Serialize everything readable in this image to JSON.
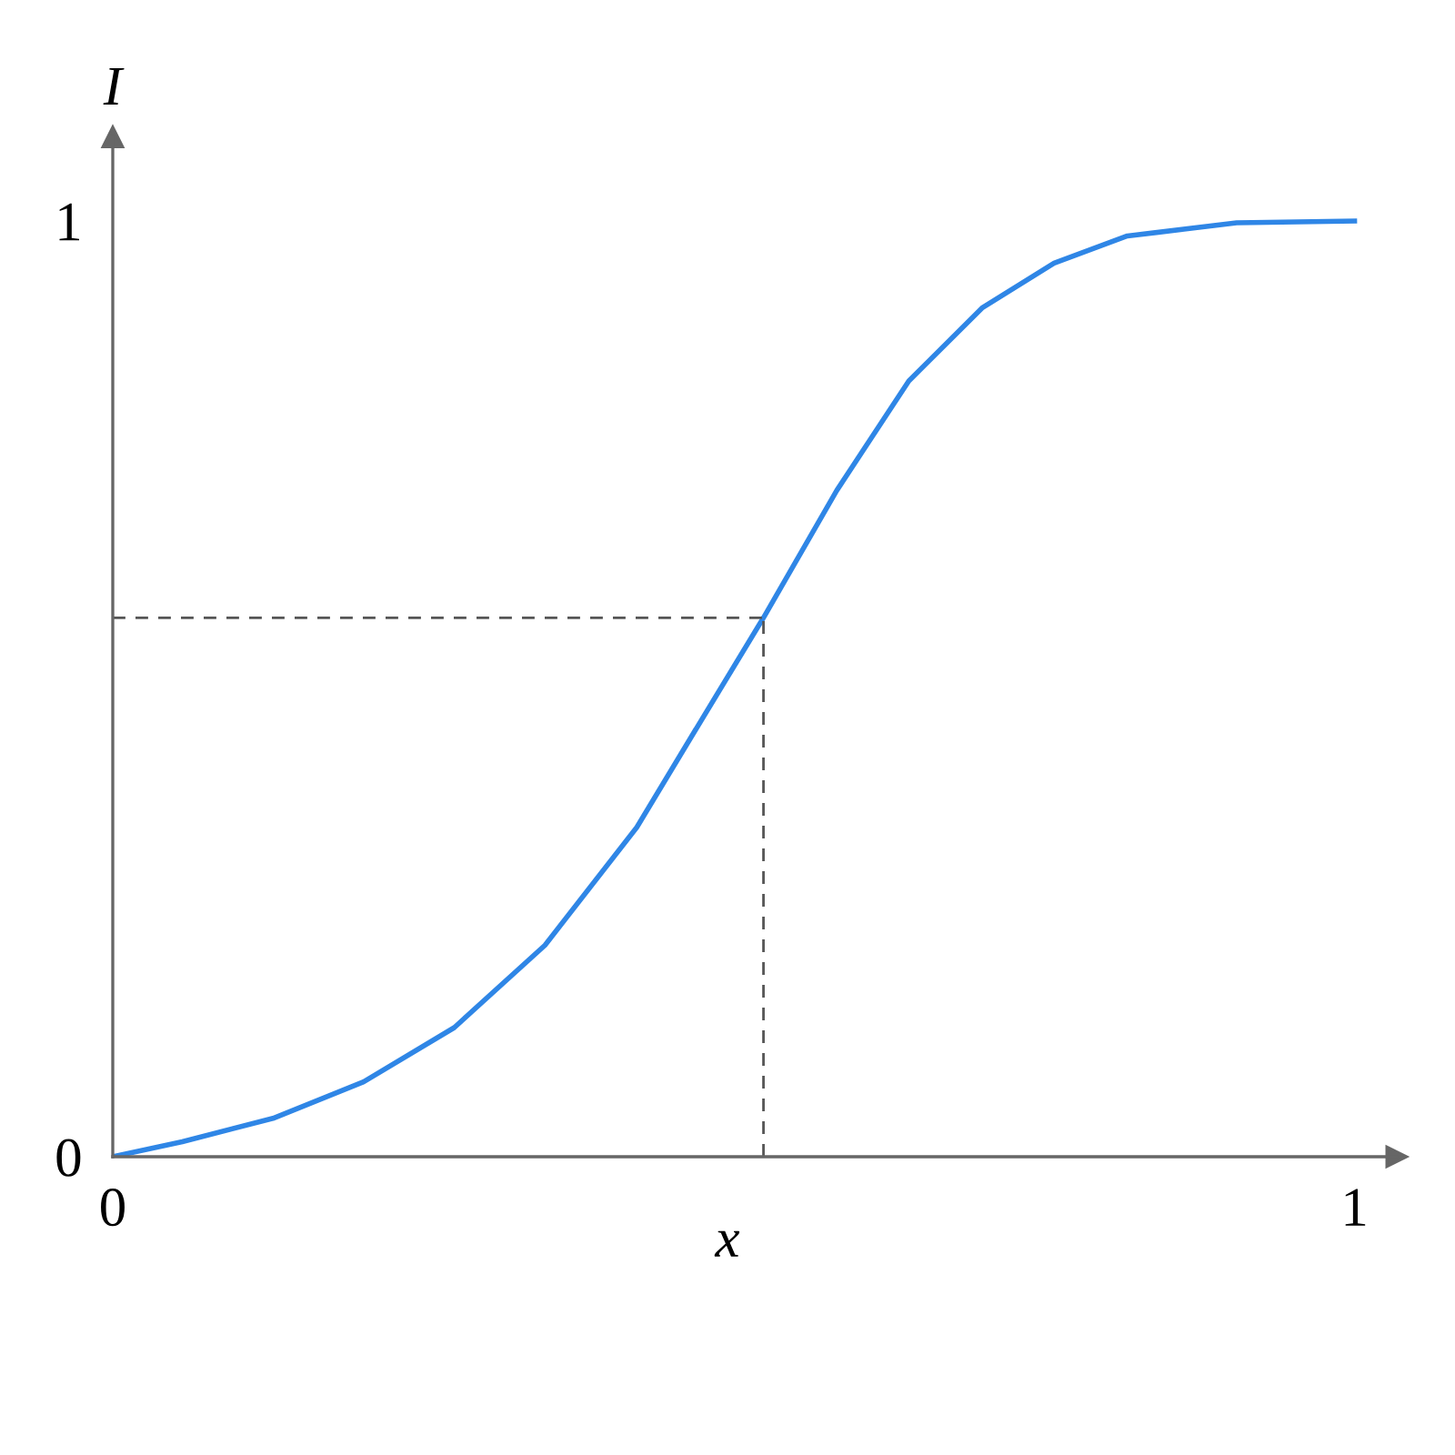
{
  "chart_data": {
    "type": "line",
    "xlabel": "x",
    "ylabel": "I",
    "x": [
      0,
      0.056,
      0.129,
      0.202,
      0.275,
      0.348,
      0.422,
      0.466,
      0.524,
      0.583,
      0.641,
      0.7,
      0.758,
      0.817,
      0.905,
      1
    ],
    "series": [
      {
        "color": "#2f86e6",
        "values": [
          0,
          0.016,
          0.041,
          0.08,
          0.138,
          0.226,
          0.352,
          0.449,
          0.576,
          0.712,
          0.829,
          0.907,
          0.955,
          0.984,
          0.998,
          1
        ]
      }
    ],
    "xlim": [
      0,
      1.034
    ],
    "ylim": [
      0,
      1.09
    ],
    "xticks": [
      0,
      1
    ],
    "yticks": [
      0,
      1
    ],
    "ref_lines": [
      {
        "axis": "x",
        "value": 0.524,
        "color": "#555555",
        "line_style": "dashed"
      },
      {
        "axis": "y",
        "value": 0.576,
        "color": "#555555",
        "line_style": "dashed"
      }
    ],
    "grid": false,
    "legend": false,
    "marker": "none",
    "line_style": "solid"
  }
}
